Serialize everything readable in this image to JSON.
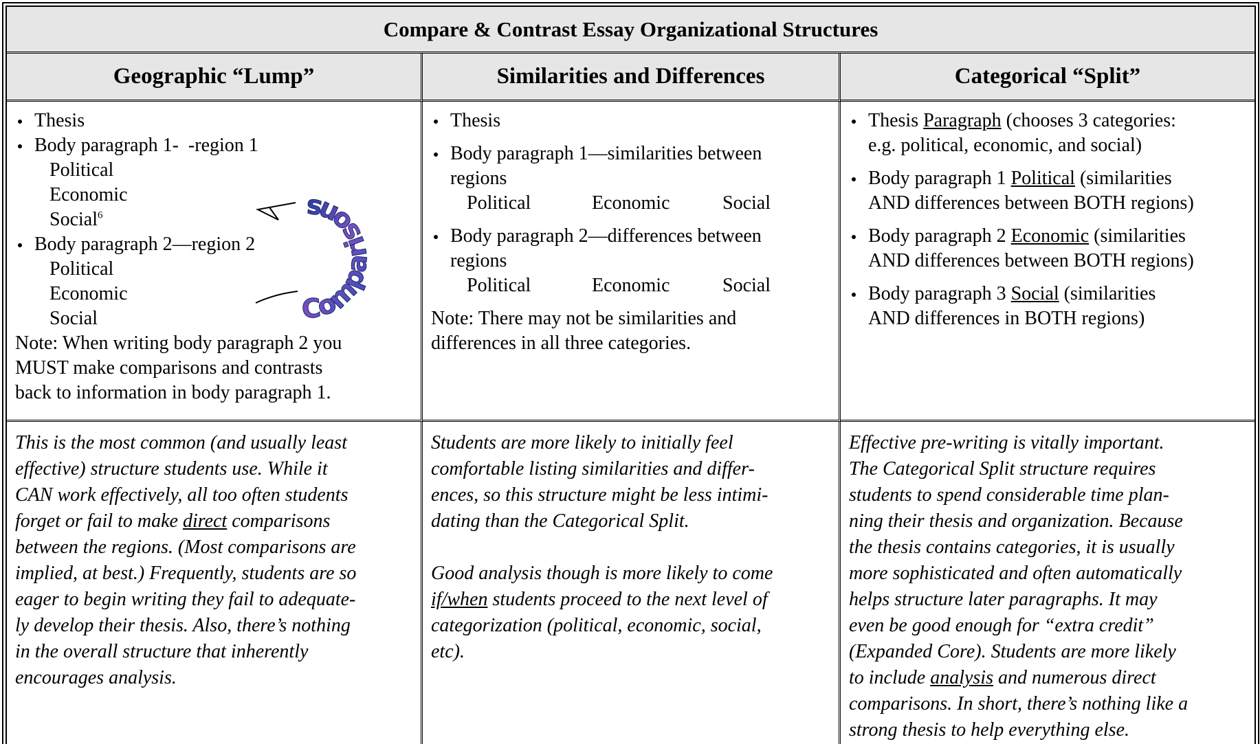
{
  "title": "Compare & Contrast Essay Organizational Structures",
  "columns": [
    {
      "heading": "Geographic “Lump”",
      "blocks": [
        {
          "kind": "bullet",
          "lines": [
            "Thesis"
          ]
        },
        {
          "kind": "bullet",
          "lines": [
            "Body paragraph 1-  -region 1"
          ]
        },
        {
          "kind": "sub",
          "lines": [
            "Political",
            "Economic",
            [
              "Social",
              {
                "sup": "6"
              }
            ]
          ]
        },
        {
          "kind": "bullet",
          "lines": [
            "Body paragraph 2—region 2"
          ]
        },
        {
          "kind": "sub",
          "lines": [
            "Political",
            "Economic",
            "Social"
          ]
        },
        {
          "kind": "note",
          "lines": [
            "Note: When writing body paragraph 2 you",
            "MUST make comparisons and contrasts",
            "back to information in body paragraph 1."
          ]
        }
      ],
      "commentary": [
        [
          "This is the most common (and usually least",
          "effective) structure students use. While it",
          "CAN work effectively, all too often students",
          [
            "forget or fail to make ",
            {
              "u": "direct"
            },
            " comparisons"
          ],
          "between the regions. (Most comparisons are",
          "implied, at best.) Frequently, students are so",
          "eager to begin writing they fail to adequate-",
          "ly develop their thesis. Also, there’s nothing",
          "in the overall structure that inherently",
          "encourages analysis."
        ]
      ]
    },
    {
      "heading": "Similarities and Differences",
      "blocks": [
        {
          "kind": "bullet",
          "lines": [
            "Thesis"
          ]
        },
        {
          "kind": "bullet",
          "lines": [
            "Body paragraph 1—similarities between",
            "regions"
          ]
        },
        {
          "kind": "cats",
          "words": [
            "Political",
            "Economic",
            "Social"
          ]
        },
        {
          "kind": "bullet",
          "lines": [
            "Body paragraph 2—differences between",
            "regions"
          ]
        },
        {
          "kind": "cats",
          "words": [
            "Political",
            "Economic",
            "Social"
          ]
        },
        {
          "kind": "note",
          "lines": [
            "Note: There may not be similarities and",
            "differences in all three categories."
          ]
        }
      ],
      "commentary": [
        [
          "Students are more likely to initially feel",
          "comfortable listing similarities and differ-",
          "ences, so this structure might be less intimi-",
          "dating than the Categorical Split."
        ],
        [
          "Good analysis though is more likely to come",
          [
            {
              "u": "if/when"
            },
            " students proceed to the next level of"
          ],
          "categorization (political, economic, social,",
          "etc)."
        ]
      ]
    },
    {
      "heading": "Categorical “Split”",
      "blocks": [
        {
          "kind": "bullet",
          "lines": [
            [
              "Thesis ",
              {
                "u": "Paragraph"
              },
              " (chooses 3 categories:"
            ],
            "e.g. political, economic, and social)"
          ]
        },
        {
          "kind": "bullet",
          "lines": [
            [
              "Body paragraph 1 ",
              {
                "u": "Political"
              },
              " (similarities"
            ],
            "AND differences between BOTH regions)"
          ]
        },
        {
          "kind": "bullet",
          "lines": [
            [
              "Body paragraph 2 ",
              {
                "u": "Economic"
              },
              " (similarities"
            ],
            "AND differences between BOTH regions)"
          ]
        },
        {
          "kind": "bullet",
          "lines": [
            [
              "Body paragraph 3 ",
              {
                "u": "Social"
              },
              " (similarities"
            ],
            "AND differences in BOTH regions)"
          ]
        }
      ],
      "commentary": [
        [
          "Effective pre-writing is vitally important.",
          "The Categorical Split structure requires",
          "students to spend considerable time plan-",
          "ning their thesis and organization. Because",
          "the thesis contains categories, it is usually",
          "more sophisticated and often automatically",
          "helps structure later paragraphs. It may",
          "even be good enough for “extra credit”",
          "(Expanded Core). Students are more likely",
          [
            "to include ",
            {
              "u": "analysis"
            },
            " and numerous direct"
          ],
          "comparisons. In short, there’s nothing like a",
          "strong thesis to help everything else."
        ]
      ]
    }
  ],
  "graphic": {
    "label": "Comparisons"
  }
}
